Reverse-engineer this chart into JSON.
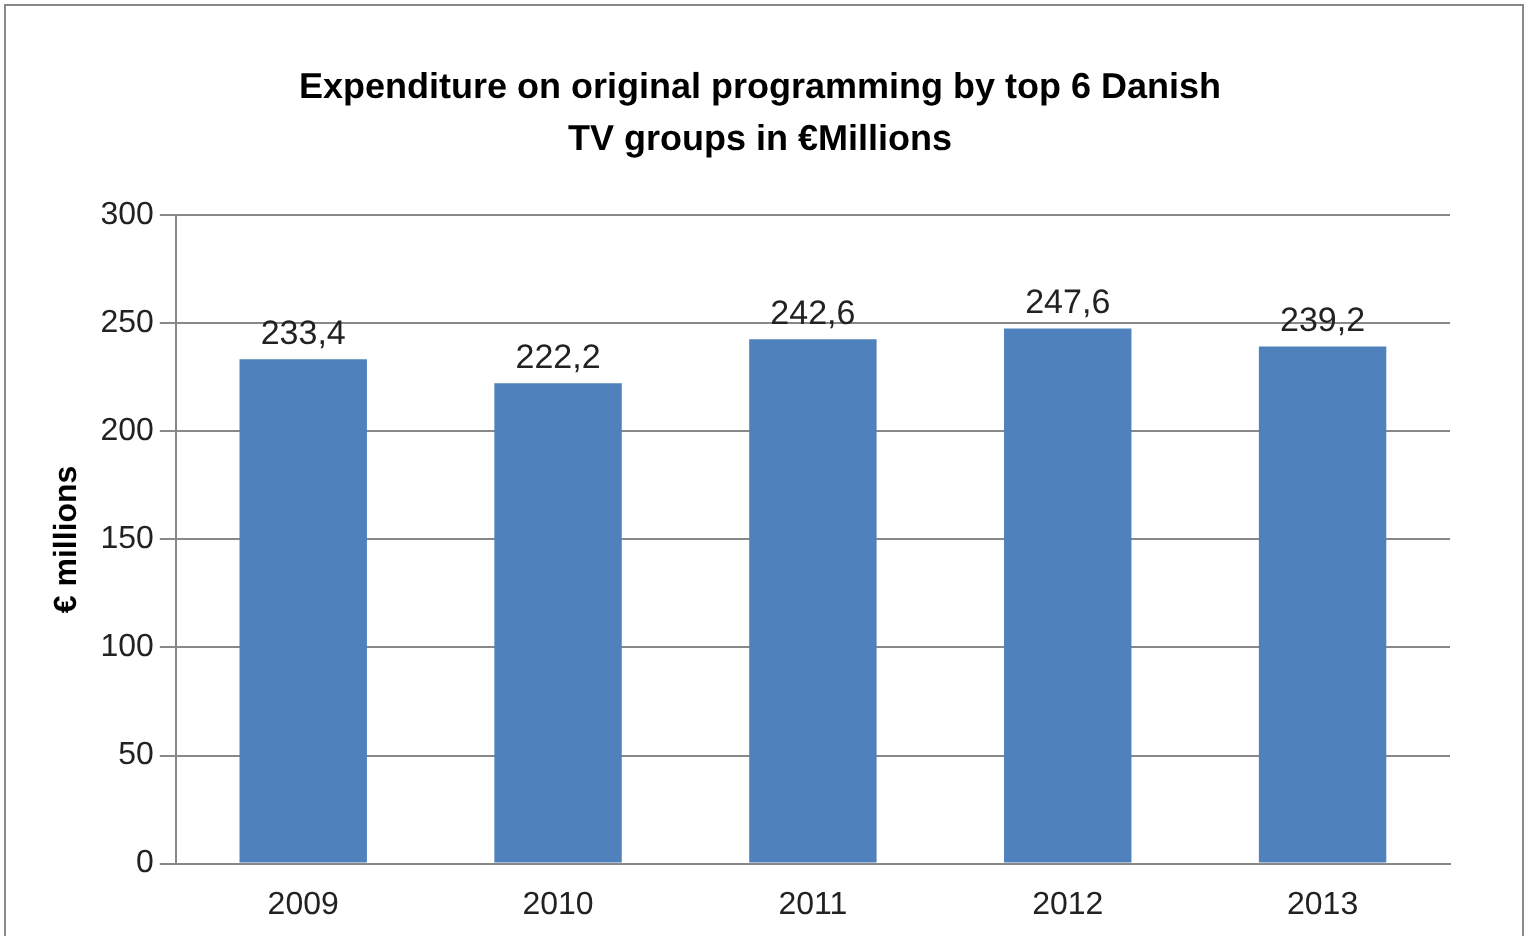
{
  "chart_data": {
    "type": "bar",
    "title": "Expenditure on original programming by  top 6 Danish TV groups in €Millions",
    "ylabel": "€ millions",
    "categories": [
      "2009",
      "2010",
      "2011",
      "2012",
      "2013"
    ],
    "values": [
      233.4,
      222.2,
      242.6,
      247.6,
      239.2
    ],
    "value_labels": [
      "233,4",
      "222,2",
      "242,6",
      "247,6",
      "239,2"
    ],
    "color": "#4f81bd",
    "ylim": [
      0,
      300
    ],
    "yticks": [
      0,
      50,
      100,
      150,
      200,
      250,
      300
    ],
    "grid": "y",
    "legend": false
  }
}
